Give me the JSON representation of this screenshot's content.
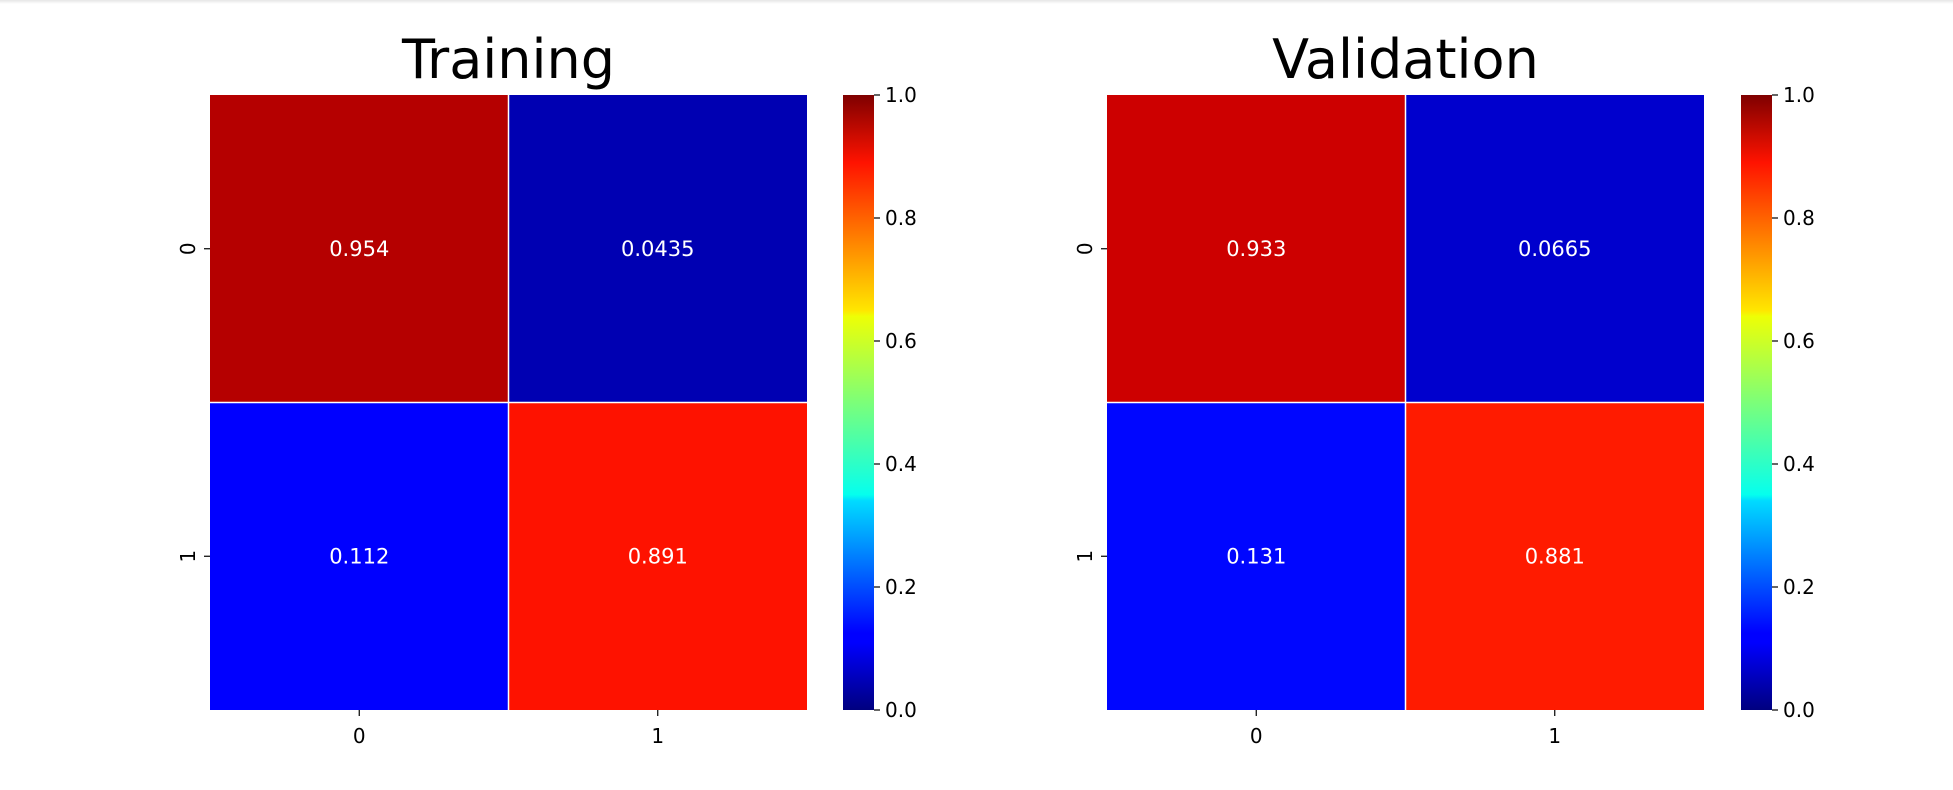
{
  "chart_data": [
    {
      "type": "heatmap",
      "title": "Training",
      "x_tick_labels": [
        "0",
        "1"
      ],
      "y_tick_labels": [
        "0",
        "1"
      ],
      "values": [
        [
          0.954,
          0.0435
        ],
        [
          0.112,
          0.891
        ]
      ],
      "cell_labels": [
        [
          "0.954",
          "0.0435"
        ],
        [
          "0.112",
          "0.891"
        ]
      ],
      "colormap": "jet",
      "vmin": 0.0,
      "vmax": 1.0,
      "colorbar_ticks": [
        "0.0",
        "0.2",
        "0.4",
        "0.6",
        "0.8",
        "1.0"
      ],
      "annotation_color": "#ffffff",
      "cell_separator_color": "#ffffff"
    },
    {
      "type": "heatmap",
      "title": "Validation",
      "x_tick_labels": [
        "0",
        "1"
      ],
      "y_tick_labels": [
        "0",
        "1"
      ],
      "values": [
        [
          0.933,
          0.0665
        ],
        [
          0.131,
          0.881
        ]
      ],
      "cell_labels": [
        [
          "0.933",
          "0.0665"
        ],
        [
          "0.131",
          "0.881"
        ]
      ],
      "colormap": "jet",
      "vmin": 0.0,
      "vmax": 1.0,
      "colorbar_ticks": [
        "0.0",
        "0.2",
        "0.4",
        "0.6",
        "0.8",
        "1.0"
      ],
      "annotation_color": "#ffffff",
      "cell_separator_color": "#ffffff"
    }
  ]
}
